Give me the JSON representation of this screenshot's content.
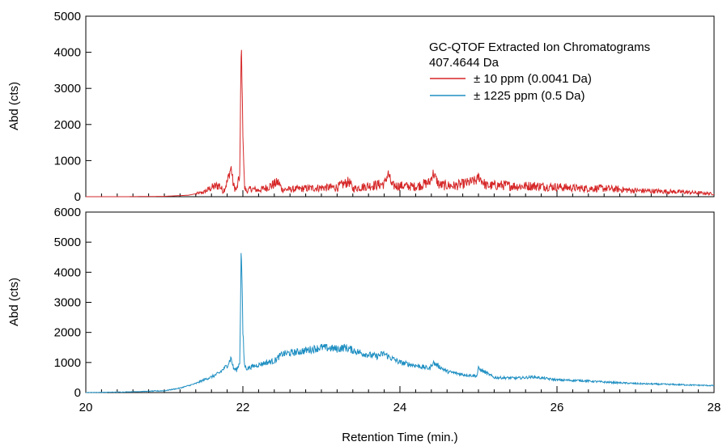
{
  "chart_data": [
    {
      "type": "line",
      "panel": "top",
      "title": "",
      "xlabel": "",
      "ylabel": "Abd (cts)",
      "xlim": [
        20,
        28
      ],
      "ylim": [
        0,
        5000
      ],
      "yticks": [
        0,
        1000,
        2000,
        3000,
        4000,
        5000
      ],
      "ytick_labels": [
        "0",
        "1000",
        "2000",
        "3000",
        "4000",
        "5000"
      ],
      "grid": false,
      "legend_position": "top-right",
      "legend": {
        "title_lines": [
          "GC-QTOF Extracted Ion Chromatograms",
          "407.4644 Da"
        ],
        "entries": [
          {
            "label": "± 10 ppm (0.0041 Da)",
            "color": "#d62728"
          },
          {
            "label": "± 1225 ppm (0.5 Da)",
            "color": "#1f8fc2"
          }
        ]
      },
      "series": [
        {
          "name": "± 10 ppm (0.0041 Da)",
          "color": "#d62728",
          "x": [
            20,
            20.5,
            21,
            21.3,
            21.5,
            21.6,
            21.7,
            21.75,
            21.8,
            21.85,
            21.88,
            21.92,
            21.96,
            21.98,
            22.0,
            22.02,
            22.05,
            22.1,
            22.2,
            22.3,
            22.45,
            22.5,
            22.6,
            22.8,
            23.0,
            23.2,
            23.35,
            23.4,
            23.6,
            23.8,
            23.85,
            23.9,
            24.0,
            24.2,
            24.38,
            24.42,
            24.5,
            24.7,
            24.8,
            24.98,
            25.0,
            25.1,
            25.3,
            25.5,
            25.7,
            26.0,
            26.3,
            26.6,
            27.0,
            27.3,
            27.6,
            28.0
          ],
          "y": [
            0,
            0,
            10,
            40,
            120,
            250,
            320,
            150,
            400,
            820,
            300,
            180,
            600,
            4380,
            1800,
            250,
            150,
            220,
            180,
            250,
            400,
            200,
            200,
            230,
            250,
            260,
            420,
            220,
            300,
            350,
            650,
            300,
            300,
            280,
            400,
            660,
            320,
            300,
            350,
            450,
            560,
            300,
            320,
            290,
            300,
            270,
            230,
            230,
            170,
            150,
            130,
            80
          ]
        }
      ]
    },
    {
      "type": "line",
      "panel": "bottom",
      "title": "",
      "xlabel": "Retention Time (min.)",
      "ylabel": "Abd (cts)",
      "xlim": [
        20,
        28
      ],
      "ylim": [
        0,
        6000
      ],
      "xticks": [
        20,
        22,
        24,
        26,
        28
      ],
      "xtick_labels": [
        "20",
        "22",
        "24",
        "26",
        "28"
      ],
      "yticks": [
        0,
        1000,
        2000,
        3000,
        4000,
        5000,
        6000
      ],
      "ytick_labels": [
        "0",
        "1000",
        "2000",
        "3000",
        "4000",
        "5000",
        "6000"
      ],
      "grid": false,
      "series": [
        {
          "name": "± 1225 ppm (0.5 Da)",
          "color": "#1f8fc2",
          "x": [
            20,
            20.5,
            21,
            21.2,
            21.4,
            21.5,
            21.6,
            21.7,
            21.8,
            21.85,
            21.88,
            21.92,
            21.96,
            21.98,
            22.0,
            22.02,
            22.05,
            22.1,
            22.3,
            22.4,
            22.5,
            22.7,
            22.9,
            23.0,
            23.2,
            23.3,
            23.5,
            23.7,
            23.8,
            23.85,
            24.0,
            24.2,
            24.38,
            24.42,
            24.6,
            24.8,
            24.98,
            25.0,
            25.2,
            25.5,
            25.7,
            26.0,
            26.3,
            26.6,
            27.0,
            27.3,
            27.6,
            28.0
          ],
          "y": [
            0,
            20,
            60,
            150,
            300,
            420,
            520,
            650,
            900,
            1150,
            800,
            750,
            1000,
            5000,
            2000,
            900,
            800,
            850,
            1000,
            1050,
            1280,
            1350,
            1450,
            1500,
            1450,
            1500,
            1320,
            1200,
            1300,
            1200,
            1000,
            900,
            800,
            1000,
            700,
            600,
            550,
            800,
            500,
            480,
            520,
            420,
            400,
            350,
            300,
            280,
            260,
            230
          ]
        }
      ]
    }
  ]
}
